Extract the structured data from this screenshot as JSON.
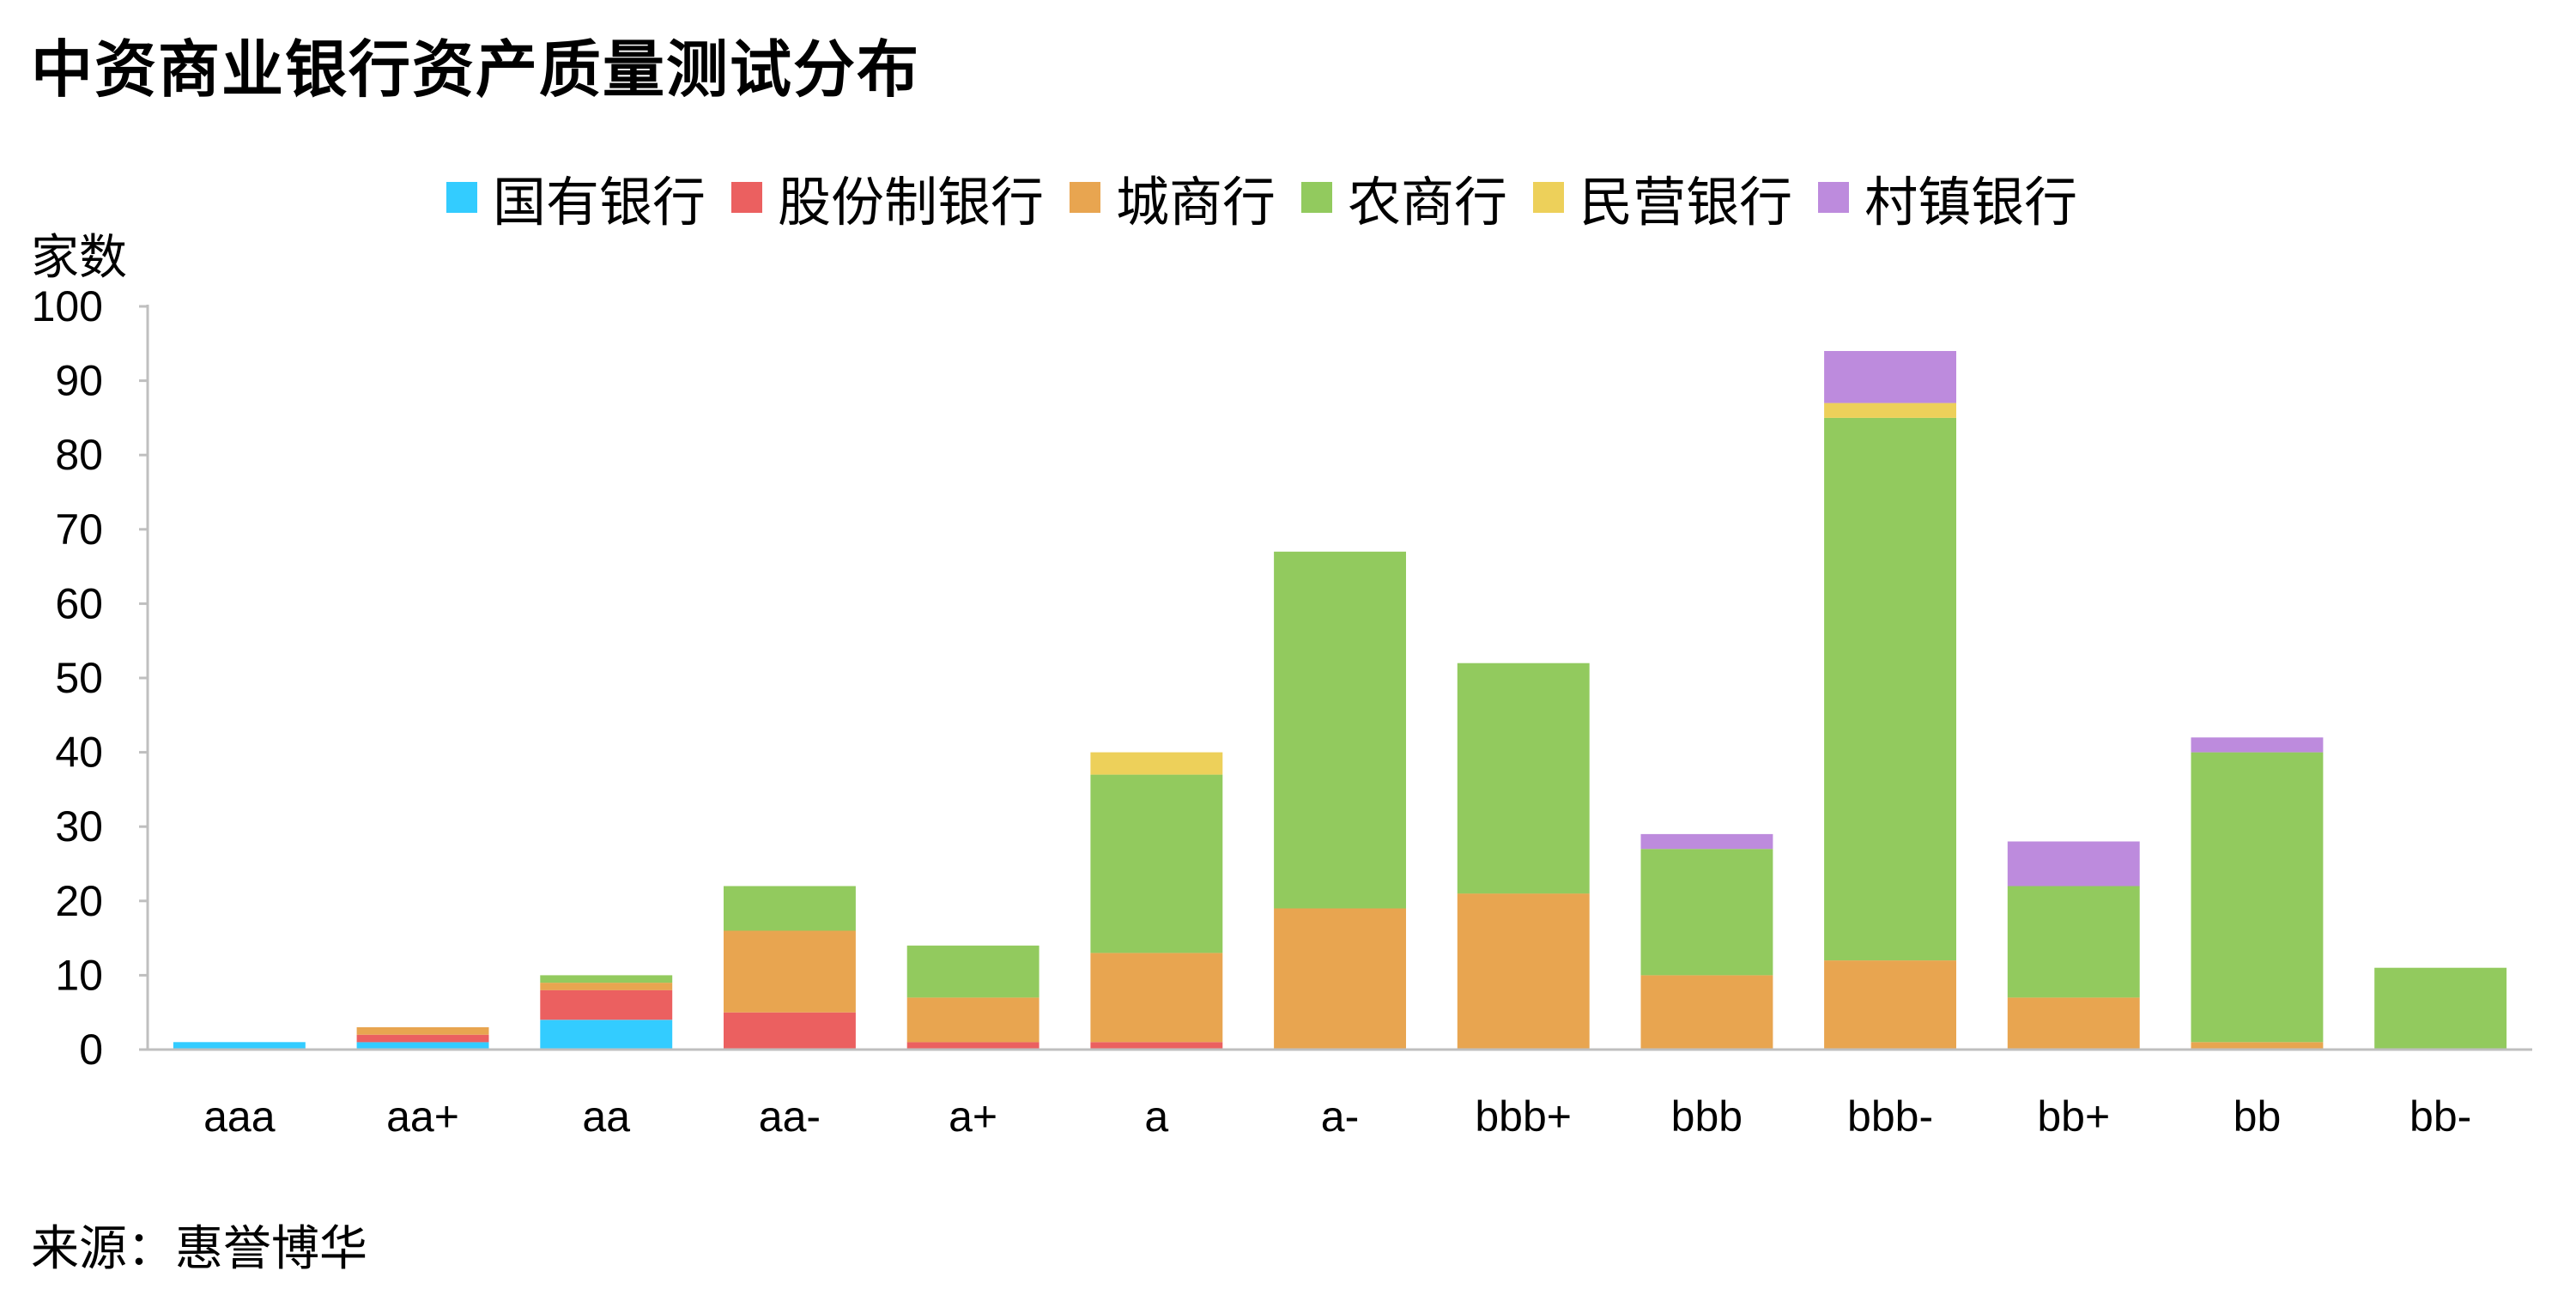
{
  "title": "中资商业银行资产质量测试分布",
  "y_unit": "家数",
  "source": "来源：惠誉博华",
  "chart_data": {
    "type": "bar",
    "stacked": true,
    "title": "中资商业银行资产质量测试分布",
    "xlabel": "",
    "ylabel": "家数",
    "ylim": [
      0,
      100
    ],
    "yticks": [
      0,
      10,
      20,
      30,
      40,
      50,
      60,
      70,
      80,
      90,
      100
    ],
    "grid": false,
    "legend_position": "top",
    "categories": [
      "aaa",
      "aa+",
      "aa",
      "aa-",
      "a+",
      "a",
      "a-",
      "bbb+",
      "bbb",
      "bbb-",
      "bb+",
      "bb",
      "bb-"
    ],
    "series": [
      {
        "name": "国有银行",
        "color": "#33CCFF",
        "values": [
          1,
          1,
          4,
          0,
          0,
          0,
          0,
          0,
          0,
          0,
          0,
          0,
          0
        ]
      },
      {
        "name": "股份制银行",
        "color": "#EB6060",
        "values": [
          0,
          1,
          4,
          5,
          1,
          1,
          0,
          0,
          0,
          0,
          0,
          0,
          0
        ]
      },
      {
        "name": "城商行",
        "color": "#E8A550",
        "values": [
          0,
          1,
          1,
          11,
          6,
          12,
          19,
          21,
          10,
          12,
          7,
          1,
          0
        ]
      },
      {
        "name": "农商行",
        "color": "#92CA5E",
        "values": [
          0,
          0,
          1,
          6,
          7,
          24,
          48,
          31,
          17,
          73,
          15,
          39,
          11
        ]
      },
      {
        "name": "民营银行",
        "color": "#EDD05A",
        "values": [
          0,
          0,
          0,
          0,
          0,
          3,
          0,
          0,
          0,
          2,
          0,
          0,
          0
        ]
      },
      {
        "name": "村镇银行",
        "color": "#BD8BDD",
        "values": [
          0,
          0,
          0,
          0,
          0,
          0,
          0,
          0,
          2,
          7,
          6,
          2,
          0
        ]
      }
    ]
  }
}
